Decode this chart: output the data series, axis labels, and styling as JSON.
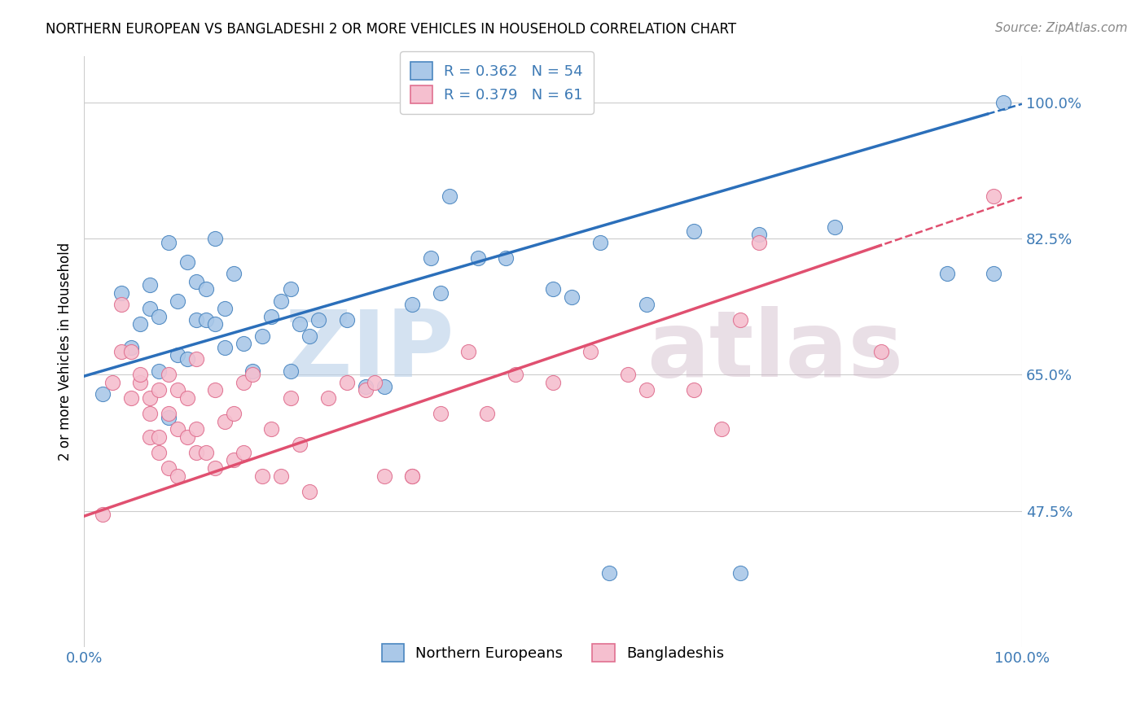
{
  "title": "NORTHERN EUROPEAN VS BANGLADESHI 2 OR MORE VEHICLES IN HOUSEHOLD CORRELATION CHART",
  "source": "Source: ZipAtlas.com",
  "ylabel": "2 or more Vehicles in Household",
  "xlim": [
    0.0,
    1.0
  ],
  "ylim": [
    0.3,
    1.06
  ],
  "ytick_vals": [
    0.475,
    0.65,
    0.825,
    1.0
  ],
  "ytick_labels": [
    "47.5%",
    "65.0%",
    "82.5%",
    "100.0%"
  ],
  "xtick_vals": [
    0.0,
    1.0
  ],
  "xtick_labels": [
    "0.0%",
    "100.0%"
  ],
  "legend_blue_label": "R = 0.362   N = 54",
  "legend_pink_label": "R = 0.379   N = 61",
  "legend_bottom_blue": "Northern Europeans",
  "legend_bottom_pink": "Bangladeshis",
  "blue_color": "#aac8e8",
  "pink_color": "#f5bfcf",
  "blue_edge_color": "#4a86c0",
  "pink_edge_color": "#e07090",
  "blue_line_color": "#2b6fba",
  "pink_line_color": "#e05070",
  "tick_color": "#3d7ab5",
  "title_fontsize": 12,
  "source_fontsize": 11,
  "tick_fontsize": 13,
  "ylabel_fontsize": 12,
  "legend_fontsize": 13,
  "blue_x": [
    0.02,
    0.04,
    0.05,
    0.06,
    0.07,
    0.07,
    0.08,
    0.08,
    0.09,
    0.09,
    0.1,
    0.1,
    0.11,
    0.11,
    0.12,
    0.12,
    0.13,
    0.13,
    0.14,
    0.14,
    0.15,
    0.15,
    0.16,
    0.17,
    0.18,
    0.19,
    0.2,
    0.21,
    0.22,
    0.22,
    0.23,
    0.24,
    0.25,
    0.28,
    0.3,
    0.32,
    0.35,
    0.37,
    0.38,
    0.39,
    0.42,
    0.45,
    0.5,
    0.52,
    0.55,
    0.56,
    0.6,
    0.65,
    0.7,
    0.72,
    0.8,
    0.92,
    0.97,
    0.98
  ],
  "blue_y": [
    0.625,
    0.755,
    0.685,
    0.715,
    0.735,
    0.765,
    0.655,
    0.725,
    0.595,
    0.82,
    0.675,
    0.745,
    0.67,
    0.795,
    0.72,
    0.77,
    0.72,
    0.76,
    0.715,
    0.825,
    0.685,
    0.735,
    0.78,
    0.69,
    0.655,
    0.7,
    0.725,
    0.745,
    0.76,
    0.655,
    0.715,
    0.7,
    0.72,
    0.72,
    0.635,
    0.635,
    0.74,
    0.8,
    0.755,
    0.88,
    0.8,
    0.8,
    0.76,
    0.75,
    0.82,
    0.395,
    0.74,
    0.835,
    0.395,
    0.83,
    0.84,
    0.78,
    0.78,
    1.0
  ],
  "pink_x": [
    0.02,
    0.03,
    0.04,
    0.04,
    0.05,
    0.05,
    0.06,
    0.06,
    0.07,
    0.07,
    0.07,
    0.08,
    0.08,
    0.08,
    0.09,
    0.09,
    0.09,
    0.1,
    0.1,
    0.1,
    0.11,
    0.11,
    0.12,
    0.12,
    0.12,
    0.13,
    0.14,
    0.14,
    0.15,
    0.16,
    0.16,
    0.17,
    0.17,
    0.18,
    0.19,
    0.2,
    0.21,
    0.22,
    0.23,
    0.24,
    0.26,
    0.28,
    0.3,
    0.31,
    0.32,
    0.35,
    0.35,
    0.38,
    0.41,
    0.43,
    0.46,
    0.5,
    0.54,
    0.58,
    0.6,
    0.65,
    0.68,
    0.7,
    0.72,
    0.85,
    0.97
  ],
  "pink_y": [
    0.47,
    0.64,
    0.68,
    0.74,
    0.62,
    0.68,
    0.64,
    0.65,
    0.62,
    0.6,
    0.57,
    0.57,
    0.55,
    0.63,
    0.53,
    0.65,
    0.6,
    0.52,
    0.58,
    0.63,
    0.57,
    0.62,
    0.55,
    0.58,
    0.67,
    0.55,
    0.53,
    0.63,
    0.59,
    0.54,
    0.6,
    0.55,
    0.64,
    0.65,
    0.52,
    0.58,
    0.52,
    0.62,
    0.56,
    0.5,
    0.62,
    0.64,
    0.63,
    0.64,
    0.52,
    0.52,
    0.52,
    0.6,
    0.68,
    0.6,
    0.65,
    0.64,
    0.68,
    0.65,
    0.63,
    0.63,
    0.58,
    0.72,
    0.82,
    0.68,
    0.88
  ]
}
